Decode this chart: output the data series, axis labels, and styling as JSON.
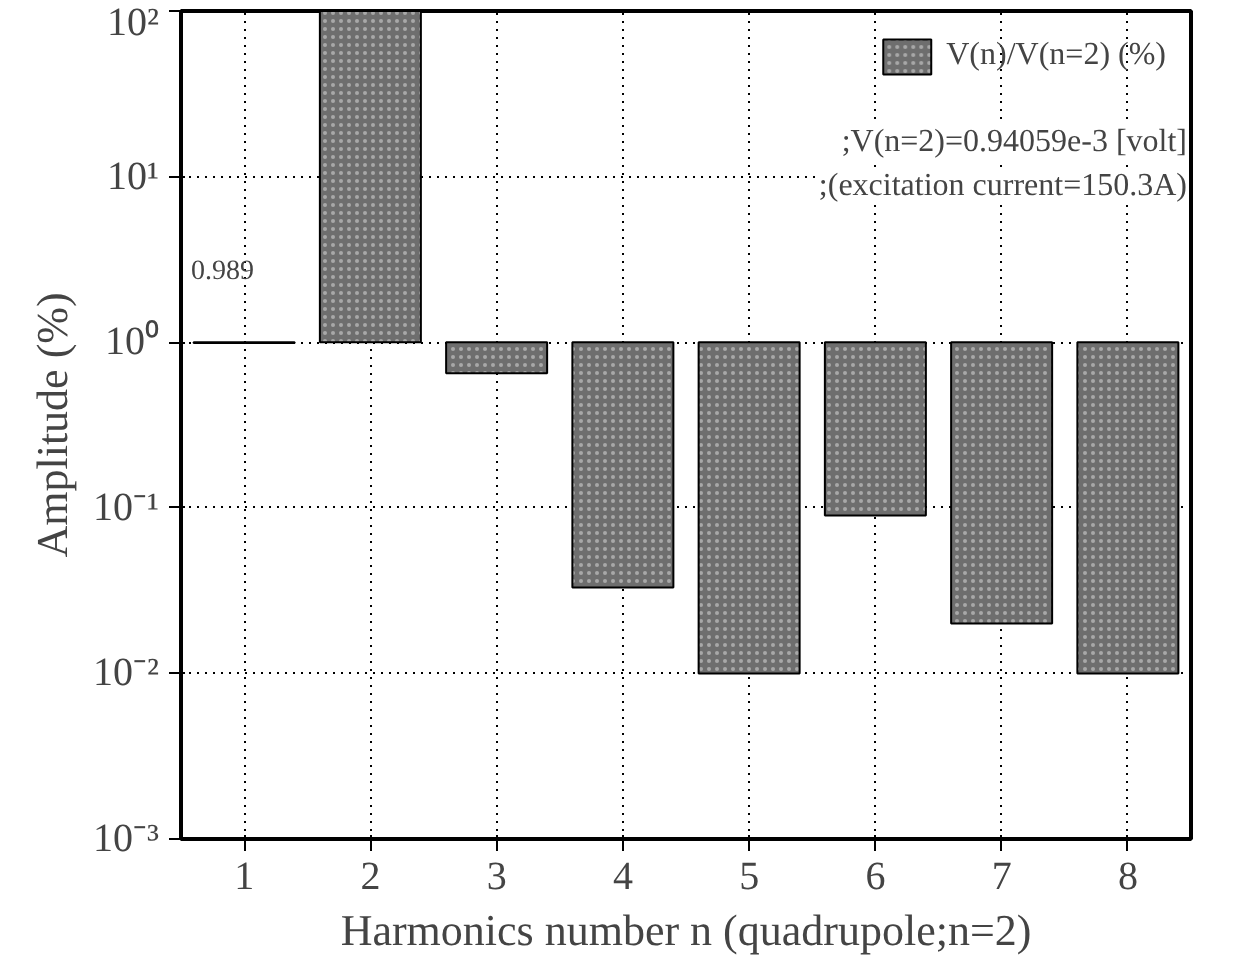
{
  "chart_data": {
    "type": "bar",
    "xlabel": "Harmonics number n (quadrupole;n=2)",
    "ylabel": "Amplitude (%)",
    "categories": [
      "1",
      "2",
      "3",
      "4",
      "5",
      "6",
      "7",
      "8"
    ],
    "series": [
      {
        "name": "V(n)/V(n=2) (%)",
        "color": "#6e6e6e",
        "base": [
          1,
          1,
          1,
          1,
          1,
          1,
          1,
          1
        ],
        "values": [
          -0.011,
          99,
          -0.35,
          -0.967,
          -0.99,
          -0.91,
          -0.98,
          -0.99
        ]
      }
    ],
    "log": "y",
    "ylim": [
      0.001,
      100
    ],
    "yticks": [
      {
        "value": 0.001,
        "label": "10⁻³"
      },
      {
        "value": 0.01,
        "label": "10⁻²"
      },
      {
        "value": 0.1,
        "label": "10⁻¹"
      },
      {
        "value": 1,
        "label": "10⁰"
      },
      {
        "value": 10,
        "label": "10¹"
      },
      {
        "value": 100,
        "label": "10²"
      }
    ],
    "grid": true,
    "legend": "top right",
    "annotations": [
      "0.989",
      ";V(n=2)=0.94059e-3 [volt]",
      ";(excitation current=150.3A)"
    ]
  }
}
